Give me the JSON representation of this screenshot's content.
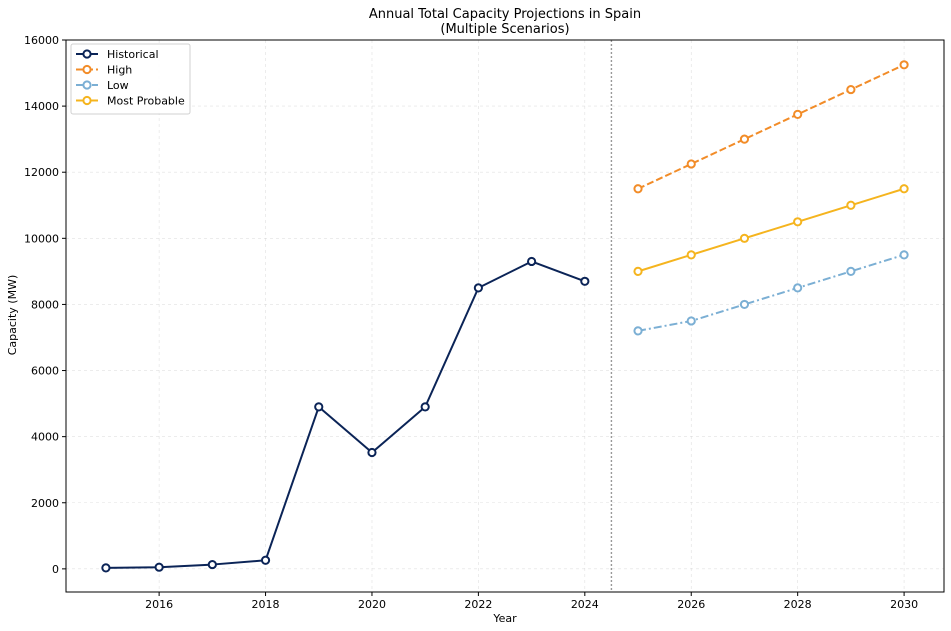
{
  "chart_data": {
    "type": "line",
    "title": "Annual Total Capacity Projections in Spain",
    "subtitle": "(Multiple Scenarios)",
    "xlabel": "Year",
    "ylabel": "Capacity (MW)",
    "xlim": [
      2014.25,
      2030.75
    ],
    "ylim": [
      -700,
      16000
    ],
    "xticks": [
      2016,
      2018,
      2020,
      2022,
      2024,
      2026,
      2028,
      2030
    ],
    "yticks": [
      0,
      2000,
      4000,
      6000,
      8000,
      10000,
      12000,
      14000,
      16000
    ],
    "grid": true,
    "divider_x": 2024.5,
    "legend_position": "upper-left",
    "series": [
      {
        "name": "Historical",
        "color": "#0b2457",
        "dash": "solid",
        "x": [
          2015,
          2016,
          2017,
          2018,
          2019,
          2020,
          2021,
          2022,
          2023,
          2024
        ],
        "y": [
          30,
          50,
          130,
          260,
          4900,
          3520,
          4900,
          8500,
          9300,
          8700
        ]
      },
      {
        "name": "High",
        "color": "#f28c28",
        "dash": "dashed",
        "x": [
          2025,
          2026,
          2027,
          2028,
          2029,
          2030
        ],
        "y": [
          11500,
          12250,
          13000,
          13750,
          14500,
          15250
        ]
      },
      {
        "name": "Low",
        "color": "#7bafd4",
        "dash": "dashdot",
        "x": [
          2025,
          2026,
          2027,
          2028,
          2029,
          2030
        ],
        "y": [
          7200,
          7500,
          8000,
          8500,
          9000,
          9500
        ]
      },
      {
        "name": "Most Probable",
        "color": "#f5b41e",
        "dash": "solid",
        "x": [
          2025,
          2026,
          2027,
          2028,
          2029,
          2030
        ],
        "y": [
          9000,
          9500,
          10000,
          10500,
          11000,
          11500
        ]
      }
    ]
  }
}
